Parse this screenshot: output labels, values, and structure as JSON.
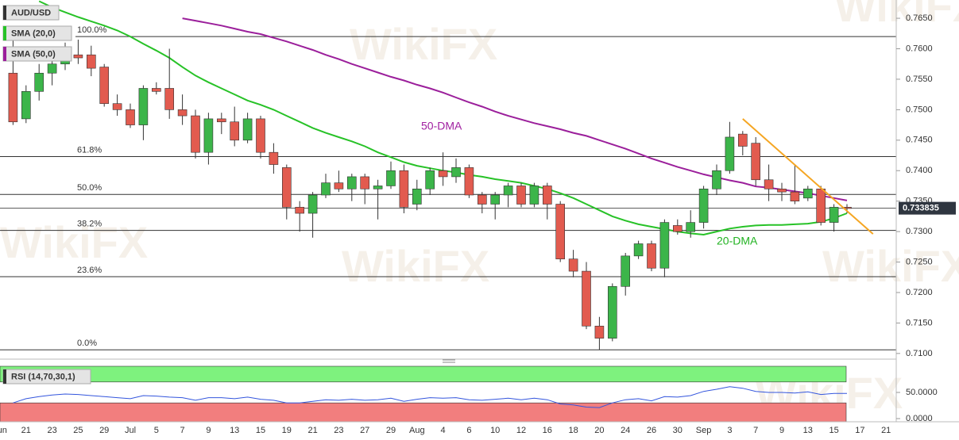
{
  "chart_data": {
    "type": "candlestick",
    "title": "AUD/USD",
    "watermark": "WikiFX",
    "categories": [
      "Jun",
      null,
      "21",
      null,
      "23",
      null,
      "25",
      null,
      "29",
      null,
      "Jul",
      null,
      "5",
      null,
      "7",
      null,
      "9",
      null,
      "13",
      null,
      "15",
      null,
      "19",
      null,
      "21",
      null,
      "23",
      null,
      "27",
      null,
      "29",
      null,
      "Aug",
      null,
      "4",
      null,
      "6",
      null,
      "10",
      null,
      "12",
      null,
      "16",
      null,
      "18",
      null,
      "20",
      null,
      "24",
      null,
      "26",
      null,
      "30",
      null,
      "Sep",
      null,
      "3",
      null,
      "7",
      null,
      "9",
      null,
      "13",
      null,
      "15",
      null,
      "17",
      null,
      "21"
    ],
    "open": [
      null,
      0.756,
      0.7485,
      0.753,
      0.756,
      0.7575,
      0.759,
      0.759,
      0.757,
      0.751,
      0.75,
      0.7475,
      0.7535,
      0.7535,
      0.75,
      0.749,
      0.743,
      0.7485,
      0.748,
      0.745,
      0.7485,
      0.743,
      0.7405,
      0.734,
      0.733,
      0.736,
      0.738,
      0.737,
      0.739,
      0.737,
      0.7375,
      0.74,
      0.7345,
      0.737,
      0.74,
      0.739,
      0.7405,
      0.736,
      0.7345,
      0.736,
      0.7375,
      0.7345,
      0.7375,
      0.7345,
      0.7255,
      0.7235,
      0.7145,
      0.7125,
      0.721,
      0.726,
      0.728,
      0.724,
      0.731,
      0.73,
      0.7315,
      0.737,
      0.74,
      0.746,
      0.7445,
      0.7385,
      0.737,
      0.7365,
      0.7355,
      0.737,
      0.7315,
      0.734,
      null,
      null,
      null
    ],
    "high": [
      null,
      0.7615,
      0.754,
      0.7575,
      0.7585,
      0.761,
      0.7615,
      0.7605,
      0.7575,
      0.7525,
      0.751,
      0.754,
      0.7545,
      0.76,
      0.7525,
      0.75,
      0.7495,
      0.7495,
      0.7505,
      0.7495,
      0.749,
      0.7445,
      0.741,
      0.735,
      0.7365,
      0.7395,
      0.74,
      0.7395,
      0.7395,
      0.7385,
      0.7415,
      0.741,
      0.7385,
      0.7405,
      0.743,
      0.742,
      0.741,
      0.7365,
      0.7365,
      0.738,
      0.738,
      0.738,
      0.738,
      0.735,
      0.727,
      0.725,
      0.716,
      0.7215,
      0.7265,
      0.7285,
      0.7285,
      0.732,
      0.732,
      0.7335,
      0.7375,
      0.741,
      0.748,
      0.7465,
      0.7455,
      0.741,
      0.738,
      0.741,
      0.7375,
      0.7375,
      0.7345,
      0.7345,
      null,
      null,
      null
    ],
    "low": [
      null,
      0.7475,
      0.7478,
      0.7515,
      0.754,
      0.7565,
      0.7575,
      0.7555,
      0.7505,
      0.749,
      0.747,
      0.745,
      0.7525,
      0.7485,
      0.7475,
      0.742,
      0.741,
      0.746,
      0.744,
      0.7445,
      0.742,
      0.7395,
      0.732,
      0.73,
      0.729,
      0.7355,
      0.7365,
      0.735,
      0.7345,
      0.732,
      0.737,
      0.733,
      0.7335,
      0.736,
      0.7375,
      0.738,
      0.7355,
      0.733,
      0.732,
      0.734,
      0.734,
      0.734,
      0.732,
      0.725,
      0.7225,
      0.714,
      0.7106,
      0.712,
      0.7195,
      0.7255,
      0.7235,
      0.7225,
      0.7295,
      0.729,
      0.7305,
      0.736,
      0.7395,
      0.7425,
      0.7375,
      0.735,
      0.735,
      0.7345,
      0.735,
      0.731,
      0.73,
      0.733,
      null,
      null,
      null
    ],
    "close": [
      null,
      0.748,
      0.753,
      0.756,
      0.7575,
      0.7595,
      0.7585,
      0.7568,
      0.751,
      0.75,
      0.7475,
      0.7535,
      0.753,
      0.75,
      0.749,
      0.743,
      0.7485,
      0.748,
      0.745,
      0.7485,
      0.743,
      0.741,
      0.734,
      0.733,
      0.736,
      0.738,
      0.737,
      0.739,
      0.737,
      0.7375,
      0.74,
      0.734,
      0.737,
      0.74,
      0.739,
      0.7405,
      0.736,
      0.7345,
      0.736,
      0.7375,
      0.7345,
      0.7375,
      0.7345,
      0.7255,
      0.7235,
      0.7145,
      0.7125,
      0.721,
      0.726,
      0.728,
      0.724,
      0.7315,
      0.73,
      0.7315,
      0.737,
      0.74,
      0.7455,
      0.744,
      0.7385,
      0.737,
      0.7365,
      0.735,
      0.737,
      0.7315,
      0.734,
      0.7338,
      null,
      null,
      null
    ],
    "up_color": "#3cb54a",
    "down_color": "#e25b4f",
    "wick_color": "#333333",
    "series": [
      {
        "name": "SMA (20,0)",
        "color": "#27c227",
        "values": [
          null,
          null,
          null,
          0.7678,
          0.7668,
          0.766,
          0.7652,
          0.7645,
          0.7638,
          0.763,
          0.762,
          0.7608,
          0.7597,
          0.7585,
          0.757,
          0.7556,
          0.7545,
          0.7535,
          0.7525,
          0.7515,
          0.7508,
          0.75,
          0.749,
          0.748,
          0.747,
          0.7462,
          0.7455,
          0.7448,
          0.744,
          0.743,
          0.7422,
          0.7414,
          0.7408,
          0.7404,
          0.74,
          0.7397,
          0.7393,
          0.739,
          0.7386,
          0.7383,
          0.738,
          0.7375,
          0.737,
          0.7363,
          0.7355,
          0.7345,
          0.7335,
          0.7325,
          0.7318,
          0.7312,
          0.7308,
          0.7304,
          0.73,
          0.7297,
          0.7295,
          0.73,
          0.7305,
          0.7308,
          0.731,
          0.7311,
          0.7311,
          0.7312,
          0.7313,
          0.7316,
          0.7322,
          0.733,
          null,
          null,
          null
        ]
      },
      {
        "name": "SMA (50,0)",
        "color": "#9b1f9b",
        "values": [
          null,
          null,
          null,
          null,
          null,
          null,
          null,
          null,
          null,
          null,
          null,
          null,
          null,
          null,
          0.765,
          0.7646,
          0.7642,
          0.7638,
          0.7633,
          0.7628,
          0.7624,
          0.7618,
          0.7612,
          0.7605,
          0.7598,
          0.759,
          0.7583,
          0.7575,
          0.7568,
          0.7561,
          0.7554,
          0.7548,
          0.7541,
          0.7535,
          0.7528,
          0.752,
          0.7512,
          0.7505,
          0.7497,
          0.749,
          0.7484,
          0.7478,
          0.7473,
          0.7468,
          0.7462,
          0.7457,
          0.745,
          0.7443,
          0.7436,
          0.7428,
          0.742,
          0.7413,
          0.7406,
          0.74,
          0.7394,
          0.7389,
          0.7384,
          0.738,
          0.7374,
          0.7372,
          0.7369,
          0.7366,
          0.7363,
          0.7359,
          0.7355,
          0.7351,
          null,
          null,
          null
        ]
      }
    ],
    "ylim": [
      0.7092,
      0.768
    ],
    "yticks": [
      {
        "value": 0.765,
        "label": "0.7650"
      },
      {
        "value": 0.76,
        "label": "0.7600"
      },
      {
        "value": 0.755,
        "label": "0.7550"
      },
      {
        "value": 0.75,
        "label": "0.7500"
      },
      {
        "value": 0.745,
        "label": "0.7450"
      },
      {
        "value": 0.74,
        "label": "0.7400"
      },
      {
        "value": 0.735,
        "label": "0.7350"
      },
      {
        "value": 0.73,
        "label": "0.7300"
      },
      {
        "value": 0.725,
        "label": "0.7250"
      },
      {
        "value": 0.72,
        "label": "0.7200"
      },
      {
        "value": 0.715,
        "label": "0.7150"
      },
      {
        "value": 0.71,
        "label": "0.7100"
      }
    ],
    "last_price": 0.733835,
    "fibonacci": [
      {
        "label": "100.0%",
        "price": 0.762
      },
      {
        "label": "61.8%",
        "price": 0.7423
      },
      {
        "label": "50.0%",
        "price": 0.7361
      },
      {
        "label": "38.2%",
        "price": 0.7302
      },
      {
        "label": "23.6%",
        "price": 0.7226
      },
      {
        "label": "0.0%",
        "price": 0.7106
      }
    ],
    "trendline": {
      "color": "#f5a623",
      "from": 0.7485,
      "to": 0.7296
    },
    "annotations": [
      {
        "text": "50-DMA",
        "color": "#a020a0"
      },
      {
        "text": "20-DMA",
        "color": "#22b322"
      }
    ],
    "rsi": {
      "name": "RSI (14,70,30,1)",
      "color": "#3355dd",
      "overbought": 70,
      "oversold": 30,
      "overbought_color": "#7ef27e",
      "oversold_color": "#f27e7e",
      "ylim": [
        0,
        100
      ],
      "yticks": [
        {
          "value": 50,
          "label": "50.0000"
        },
        {
          "value": 0,
          "label": "0.0000"
        }
      ],
      "values": [
        null,
        30,
        38,
        42,
        45,
        47,
        46,
        44,
        42,
        40,
        38,
        44,
        43,
        41,
        40,
        35,
        40,
        40,
        38,
        41,
        37,
        35,
        30,
        30,
        33,
        36,
        35,
        37,
        35,
        36,
        39,
        33,
        37,
        40,
        39,
        40,
        36,
        35,
        37,
        39,
        36,
        39,
        36,
        28,
        26,
        22,
        21,
        30,
        36,
        38,
        34,
        42,
        41,
        44,
        52,
        56,
        61,
        58,
        52,
        50,
        50,
        49,
        51,
        46,
        48,
        48,
        null,
        null,
        null
      ]
    }
  }
}
